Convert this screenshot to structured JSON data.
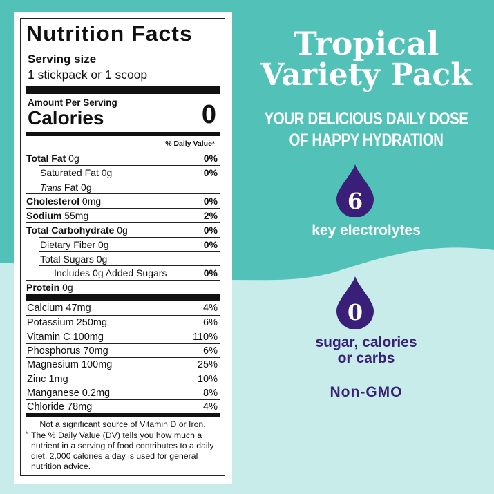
{
  "colors": {
    "teal": "#52c2b9",
    "light_aqua": "#c8ecea",
    "purple": "#3a1f78",
    "white": "#ffffff"
  },
  "label": {
    "title": "Nutrition Facts",
    "serving_size_label": "Serving size",
    "serving_size_value": "1 stickpack or 1 scoop",
    "amount_per_serving": "Amount Per Serving",
    "calories_label": "Calories",
    "calories_value": "0",
    "daily_value_header": "% Daily Value*",
    "nutrients": [
      {
        "name": "Total Fat",
        "amount": " 0g",
        "dv": "0%"
      },
      {
        "name": "Saturated Fat 0g",
        "amount": "",
        "dv": "0%"
      },
      {
        "name": "Trans",
        "amount": " Fat 0g",
        "dv": ""
      },
      {
        "name": "Cholesterol",
        "amount": " 0mg",
        "dv": "0%"
      },
      {
        "name": "Sodium",
        "amount": " 55mg",
        "dv": "2%"
      },
      {
        "name": "Total Carbohydrate",
        "amount": " 0g",
        "dv": "0%"
      },
      {
        "name": "Dietary Fiber 0g",
        "amount": "",
        "dv": "0%"
      },
      {
        "name": "Total Sugars 0g",
        "amount": "",
        "dv": ""
      },
      {
        "name": "Includes 0g Added Sugars",
        "amount": "",
        "dv": "0%"
      },
      {
        "name": "Protein",
        "amount": " 0g",
        "dv": ""
      }
    ],
    "vitamins": [
      {
        "name": "Calcium 47mg",
        "dv": "4%"
      },
      {
        "name": "Potassium 250mg",
        "dv": "6%"
      },
      {
        "name": "Vitamin C 100mg",
        "dv": "110%"
      },
      {
        "name": "Phosphorus 70mg",
        "dv": "6%"
      },
      {
        "name": "Magnesium 100mg",
        "dv": "25%"
      },
      {
        "name": "Zinc 1mg",
        "dv": "10%"
      },
      {
        "name": "Manganese 0.2mg",
        "dv": "8%"
      },
      {
        "name": "Chloride 78mg",
        "dv": "4%"
      }
    ],
    "footnote1": "Not a significant source of Vitamin D or Iron.",
    "footnote_star": "*",
    "footnote2": "The % Daily Value (DV) tells you how much a nutrient in a serving of food contributes to a daily diet. 2,000 calories a day is used for general nutrition advice."
  },
  "promo": {
    "title_line1": "Tropical",
    "title_line2": "Variety Pack",
    "tagline_line1": "YOUR DELICIOUS DAILY DOSE",
    "tagline_line2": "OF HAPPY HYDRATION",
    "drop1_number": "6",
    "drop1_text": "key electrolytes",
    "drop2_number": "0",
    "drop2_text_line1": "sugar, calories",
    "drop2_text_line2": "or carbs",
    "non_gmo": "Non-GMO"
  }
}
